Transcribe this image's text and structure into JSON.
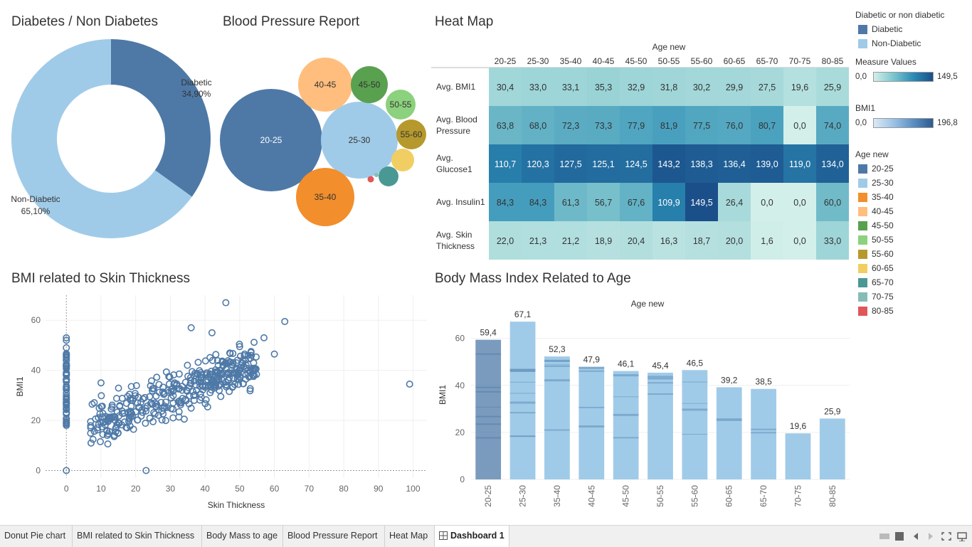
{
  "titles": {
    "donut": "Diabetes / Non Diabetes",
    "bubble": "Blood Pressure Report",
    "heatmap": "Heat Map",
    "scatter": "BMI related to Skin Thickness",
    "bar": "Body Mass Index Related to Age"
  },
  "colors": {
    "diabetic": "#4e79a7",
    "non_diabetic": "#a0cbe8",
    "age": {
      "20-25": "#4e79a7",
      "25-30": "#a0cbe8",
      "35-40": "#f28e2b",
      "40-45": "#ffbe7d",
      "45-50": "#59a14f",
      "50-55": "#8cd17d",
      "55-60": "#b6992d",
      "60-65": "#f1ce63",
      "65-70": "#499894",
      "70-75": "#86bcb6",
      "80-85": "#e15759"
    }
  },
  "legend": {
    "diab_title": "Diabetic or non diabetic",
    "diab_items": [
      {
        "label": "Diabetic",
        "color": "#4e79a7"
      },
      {
        "label": "Non-Diabetic",
        "color": "#a0cbe8"
      }
    ],
    "measure_title": "Measure Values",
    "measure_min": "0,0",
    "measure_max": "149,5",
    "bmi_title": "BMI1",
    "bmi_min": "0,0",
    "bmi_max": "196,8",
    "age_title": "Age new",
    "age_items": [
      {
        "label": "20-25",
        "color": "#4e79a7"
      },
      {
        "label": "25-30",
        "color": "#a0cbe8"
      },
      {
        "label": "35-40",
        "color": "#f28e2b"
      },
      {
        "label": "40-45",
        "color": "#ffbe7d"
      },
      {
        "label": "45-50",
        "color": "#59a14f"
      },
      {
        "label": "50-55",
        "color": "#8cd17d"
      },
      {
        "label": "55-60",
        "color": "#b6992d"
      },
      {
        "label": "60-65",
        "color": "#f1ce63"
      },
      {
        "label": "65-70",
        "color": "#499894"
      },
      {
        "label": "70-75",
        "color": "#86bcb6"
      },
      {
        "label": "80-85",
        "color": "#e15759"
      }
    ]
  },
  "tabs": [
    {
      "label": "Donut Pie chart",
      "active": false
    },
    {
      "label": "BMI related to Skin Thickness",
      "active": false
    },
    {
      "label": "Body Mass to age",
      "active": false
    },
    {
      "label": "Blood Pressure Report",
      "active": false
    },
    {
      "label": "Heat Map",
      "active": false
    },
    {
      "label": "Dashboard 1",
      "active": true
    }
  ],
  "chart_data": [
    {
      "id": "donut",
      "type": "pie",
      "title": "Diabetes / Non Diabetes",
      "slices": [
        {
          "label": "Diabetic",
          "value": 34.9,
          "display": "34,90%",
          "color": "#4e79a7"
        },
        {
          "label": "Non-Diabetic",
          "value": 65.1,
          "display": "65,10%",
          "color": "#a0cbe8"
        }
      ]
    },
    {
      "id": "bubble",
      "type": "scatter",
      "title": "Blood Pressure Report",
      "bubbles": [
        {
          "label": "20-25",
          "value": 63.8,
          "color": "#4e79a7",
          "text": "20-25"
        },
        {
          "label": "25-30",
          "value": 68.0,
          "color": "#a0cbe8",
          "text": "25-30"
        },
        {
          "label": "35-40",
          "value": 72.3,
          "color": "#f28e2b",
          "text": "35-40"
        },
        {
          "label": "40-45",
          "value": 73.3,
          "color": "#ffbe7d",
          "text": "40-45"
        },
        {
          "label": "45-50",
          "value": 77.9,
          "color": "#59a14f",
          "text": "45-50"
        },
        {
          "label": "50-55",
          "value": 81.9,
          "color": "#8cd17d",
          "text": "50-55"
        },
        {
          "label": "55-60",
          "value": 77.5,
          "color": "#b6992d",
          "text": "55-60"
        },
        {
          "label": "60-65",
          "value": 76.0,
          "color": "#f1ce63",
          "text": ""
        },
        {
          "label": "65-70",
          "value": 80.7,
          "color": "#499894",
          "text": ""
        },
        {
          "label": "70-75",
          "value": 0.0,
          "color": "#86bcb6",
          "text": ""
        },
        {
          "label": "80-85",
          "value": 74.0,
          "color": "#e15759",
          "text": ""
        }
      ]
    },
    {
      "id": "heatmap",
      "type": "heatmap",
      "title": "Heat Map",
      "column_header": "Age new",
      "columns": [
        "20-25",
        "25-30",
        "35-40",
        "40-45",
        "45-50",
        "50-55",
        "55-60",
        "60-65",
        "65-70",
        "70-75",
        "80-85"
      ],
      "rows": [
        {
          "label": [
            "Avg. BMI1"
          ],
          "values": [
            30.4,
            33.0,
            33.1,
            35.3,
            32.9,
            31.8,
            30.2,
            29.9,
            27.5,
            19.6,
            25.9
          ],
          "display": [
            "30,4",
            "33,0",
            "33,1",
            "35,3",
            "32,9",
            "31,8",
            "30,2",
            "29,9",
            "27,5",
            "19,6",
            "25,9"
          ]
        },
        {
          "label": [
            "Avg. Blood",
            "Pressure"
          ],
          "values": [
            63.8,
            68.0,
            72.3,
            73.3,
            77.9,
            81.9,
            77.5,
            76.0,
            80.7,
            0.0,
            74.0
          ],
          "display": [
            "63,8",
            "68,0",
            "72,3",
            "73,3",
            "77,9",
            "81,9",
            "77,5",
            "76,0",
            "80,7",
            "0,0",
            "74,0"
          ]
        },
        {
          "label": [
            "Avg.",
            "Glucose1"
          ],
          "values": [
            110.7,
            120.3,
            127.5,
            125.1,
            124.5,
            143.2,
            138.3,
            136.4,
            139.0,
            119.0,
            134.0
          ],
          "display": [
            "110,7",
            "120,3",
            "127,5",
            "125,1",
            "124,5",
            "143,2",
            "138,3",
            "136,4",
            "139,0",
            "119,0",
            "134,0"
          ]
        },
        {
          "label": [
            "Avg. Insulin1"
          ],
          "values": [
            84.3,
            84.3,
            61.3,
            56.7,
            67.6,
            109.9,
            149.5,
            26.4,
            0.0,
            0.0,
            60.0
          ],
          "display": [
            "84,3",
            "84,3",
            "61,3",
            "56,7",
            "67,6",
            "109,9",
            "149,5",
            "26,4",
            "0,0",
            "0,0",
            "60,0"
          ]
        },
        {
          "label": [
            "Avg. Skin",
            "Thickness"
          ],
          "values": [
            22.0,
            21.3,
            21.2,
            18.9,
            20.4,
            16.3,
            18.7,
            20.0,
            1.6,
            0.0,
            33.0
          ],
          "display": [
            "22,0",
            "21,3",
            "21,2",
            "18,9",
            "20,4",
            "16,3",
            "18,7",
            "20,0",
            "1,6",
            "0,0",
            "33,0"
          ]
        }
      ],
      "range": [
        0,
        149.5
      ]
    },
    {
      "id": "scatter",
      "type": "scatter",
      "title": "BMI related to Skin Thickness",
      "xlabel": "Skin Thickness",
      "ylabel": "BMI1",
      "xlim": [
        -6,
        104
      ],
      "ylim": [
        -3,
        70
      ],
      "xticks": [
        0,
        10,
        20,
        30,
        40,
        50,
        60,
        70,
        80,
        90,
        100
      ],
      "yticks": [
        0,
        20,
        40,
        60
      ],
      "points_highlight": [
        [
          0,
          0
        ],
        [
          23,
          0
        ],
        [
          99,
          34.5
        ],
        [
          46,
          67
        ],
        [
          63,
          59.5
        ],
        [
          60,
          46.5
        ],
        [
          57,
          53
        ],
        [
          36,
          57
        ],
        [
          42,
          55
        ],
        [
          0,
          53
        ],
        [
          0,
          52
        ],
        [
          0,
          49
        ],
        [
          0,
          45
        ],
        [
          0,
          19
        ],
        [
          0,
          18.5
        ],
        [
          10,
          35
        ],
        [
          7,
          19.5
        ],
        [
          18,
          19.5
        ],
        [
          25,
          19.5
        ],
        [
          34,
          20.5
        ],
        [
          12,
          19.5
        ],
        [
          15,
          19
        ]
      ],
      "cluster": {
        "x_range": [
          7,
          55
        ],
        "bmi_base": 15,
        "slope": 0.5,
        "spread": 8,
        "count": 380
      },
      "zero_column": {
        "x": 0,
        "y_range": [
          18,
          47
        ],
        "count": 60
      },
      "color": "#4e79a7"
    },
    {
      "id": "bar",
      "type": "bar",
      "title": "Body Mass Index Related to Age",
      "column_header": "Age new",
      "ylabel": "BMI1",
      "categories": [
        "20-25",
        "25-30",
        "35-40",
        "40-45",
        "45-50",
        "50-55",
        "55-60",
        "60-65",
        "65-70",
        "70-75",
        "80-85"
      ],
      "values": [
        59.4,
        67.1,
        52.3,
        47.9,
        46.1,
        45.4,
        46.5,
        39.2,
        38.5,
        19.6,
        25.9
      ],
      "labels": [
        "59,4",
        "67,1",
        "52,3",
        "47,9",
        "46,1",
        "45,4",
        "46,5",
        "39,2",
        "38,5",
        "19,6",
        "25,9"
      ],
      "ylim": [
        0,
        72
      ],
      "yticks": [
        0,
        20,
        40,
        60
      ],
      "colors": [
        "#4e79a7",
        "#a0cbe8",
        "#a0cbe8",
        "#a0cbe8",
        "#a0cbe8",
        "#a0cbe8",
        "#a0cbe8",
        "#a0cbe8",
        "#a0cbe8",
        "#a0cbe8",
        "#a0cbe8"
      ]
    }
  ]
}
